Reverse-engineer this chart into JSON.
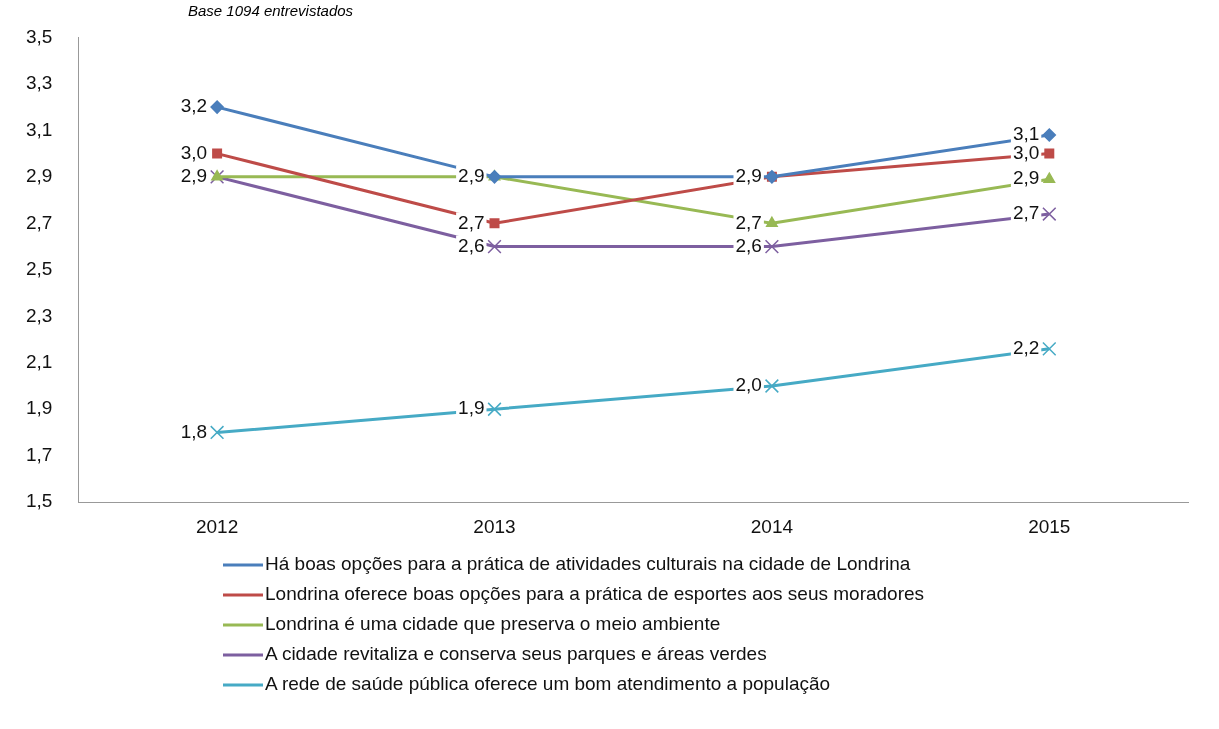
{
  "chart_data": {
    "type": "line",
    "subtitle": "Base 1094 entrevistados",
    "categories": [
      "2012",
      "2013",
      "2014",
      "2015"
    ],
    "ylim": [
      1.5,
      3.5
    ],
    "yticks": [
      {
        "value": 1.5,
        "label": "1,5"
      },
      {
        "value": 1.7,
        "label": "1,7"
      },
      {
        "value": 1.9,
        "label": "1,9"
      },
      {
        "value": 2.1,
        "label": "2,1"
      },
      {
        "value": 2.3,
        "label": "2,3"
      },
      {
        "value": 2.5,
        "label": "2,5"
      },
      {
        "value": 2.7,
        "label": "2,7"
      },
      {
        "value": 2.9,
        "label": "2,9"
      },
      {
        "value": 3.1,
        "label": "3,1"
      },
      {
        "value": 3.3,
        "label": "3,3"
      },
      {
        "value": 3.5,
        "label": "3,5"
      }
    ],
    "grid": false,
    "legend": "bottom",
    "line_style": "solid",
    "series": [
      {
        "name": "Há boas opções para a prática de atividades culturais na cidade de Londrina",
        "color": "#4a7ebb",
        "marker": "diamond",
        "values": [
          3.2,
          2.9,
          2.9,
          3.08
        ],
        "value_labels": [
          "3,2",
          null,
          null,
          "3,1"
        ]
      },
      {
        "name": "Londrina oferece boas opções para a prática de esportes aos seus moradores",
        "color": "#be4b48",
        "marker": "square",
        "values": [
          3.0,
          2.7,
          2.9,
          3.0
        ],
        "value_labels": [
          "3,0",
          "2,7",
          "2,9",
          "3,0"
        ]
      },
      {
        "name": "Londrina é uma cidade que preserva o meio ambiente",
        "color": "#98b954",
        "marker": "triangle",
        "values": [
          2.9,
          2.9,
          2.7,
          2.89
        ],
        "value_labels": [
          "2,9",
          "2,9",
          "2,7",
          "2,9"
        ]
      },
      {
        "name": "A cidade revitaliza e conserva seus parques e áreas verdes",
        "color": "#7d5fa0",
        "marker": "cross",
        "values": [
          2.9,
          2.6,
          2.6,
          2.74
        ],
        "value_labels": [
          null,
          "2,6",
          "2,6",
          "2,7"
        ]
      },
      {
        "name": "A rede de saúde pública oferece um bom atendimento a população",
        "color": "#46aac5",
        "marker": "cross",
        "values": [
          1.8,
          1.9,
          2.0,
          2.16
        ],
        "value_labels": [
          "1,8",
          "1,9",
          "2,0",
          "2,2"
        ]
      }
    ]
  }
}
